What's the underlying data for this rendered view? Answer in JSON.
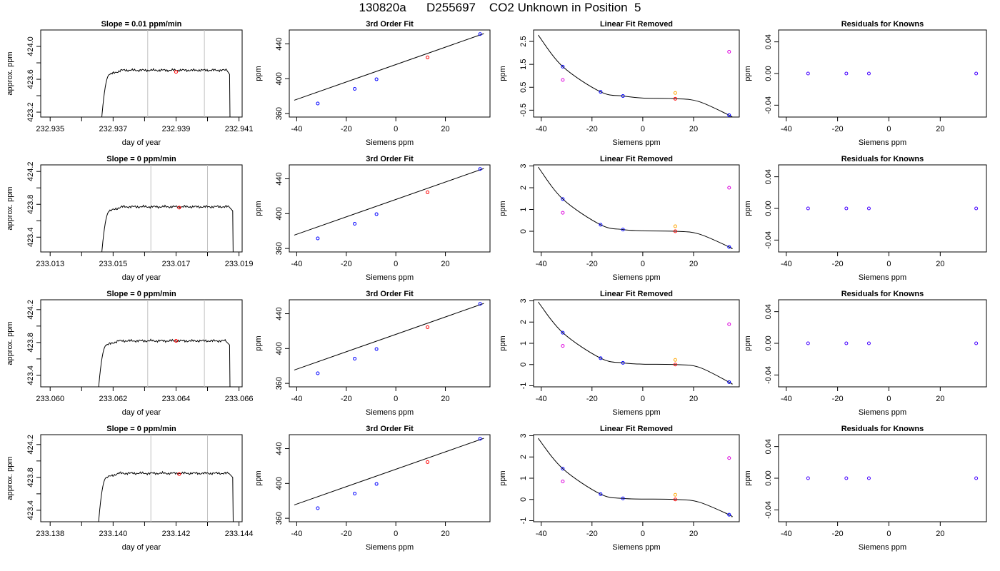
{
  "page": {
    "title": "130820a      D255697    CO2 Unknown in Position  5"
  },
  "chart_data": [
    {
      "type": "line",
      "title": "Slope =  0.01  ppm/min",
      "xlabel": "day of year",
      "ylabel": "approx. ppm",
      "xlim": [
        232.9347,
        232.9411
      ],
      "ylim": [
        423.14,
        424.2
      ],
      "xticks": [
        "232.935",
        "232.937",
        "232.939",
        "232.941"
      ],
      "xtick_values": [
        232.935,
        232.937,
        232.939,
        232.941
      ],
      "yticks": [
        "423.2",
        "423.6",
        "424.0"
      ],
      "ytick_values": [
        423.2,
        423.6,
        424.0
      ],
      "vlines": [
        232.9381,
        232.9399
      ],
      "trace": {
        "start": 232.9366,
        "end": 232.9407,
        "plateau": 423.71,
        "rise_end": 232.9369
      },
      "marker": {
        "x": 232.939,
        "y": 423.69
      }
    },
    {
      "type": "line",
      "title": "Slope =  0  ppm/min",
      "xlabel": "day of year",
      "ylabel": "approx. ppm",
      "xlim": [
        233.0127,
        233.0191
      ],
      "ylim": [
        423.22,
        424.28
      ],
      "xticks": [
        "233.013",
        "233.015",
        "233.017",
        "233.019"
      ],
      "xtick_values": [
        233.013,
        233.015,
        233.017,
        233.019
      ],
      "yticks": [
        "423.4",
        "423.8",
        "424.2"
      ],
      "ytick_values": [
        423.4,
        423.8,
        424.2
      ],
      "vlines": [
        233.0162,
        233.018
      ],
      "trace": {
        "start": 233.0146,
        "end": 233.0188,
        "plateau": 423.77,
        "rise_end": 233.0149
      },
      "marker": {
        "x": 233.0171,
        "y": 423.76
      }
    },
    {
      "type": "line",
      "title": "Slope =  0  ppm/min",
      "xlabel": "day of year",
      "ylabel": "approx. ppm",
      "xlim": [
        233.0597,
        233.0661
      ],
      "ylim": [
        423.26,
        424.32
      ],
      "xticks": [
        "233.060",
        "233.062",
        "233.064",
        "233.066"
      ],
      "xtick_values": [
        233.06,
        233.062,
        233.064,
        233.066
      ],
      "yticks": [
        "423.4",
        "423.8",
        "424.2"
      ],
      "ytick_values": [
        423.4,
        423.8,
        424.2
      ],
      "vlines": [
        233.0631,
        233.0649
      ],
      "trace": {
        "start": 233.0615,
        "end": 233.0657,
        "plateau": 423.82,
        "rise_end": 233.0618
      },
      "marker": {
        "x": 233.064,
        "y": 423.82
      }
    },
    {
      "type": "line",
      "title": "Slope =  0  ppm/min",
      "xlabel": "day of year",
      "ylabel": "approx. ppm",
      "xlim": [
        233.1377,
        233.1441
      ],
      "ylim": [
        423.26,
        424.32
      ],
      "xticks": [
        "233.138",
        "233.140",
        "233.142",
        "233.144"
      ],
      "xtick_values": [
        233.138,
        233.14,
        233.142,
        233.144
      ],
      "yticks": [
        "423.4",
        "423.8",
        "424.2"
      ],
      "ytick_values": [
        423.4,
        423.8,
        424.2
      ],
      "vlines": [
        233.1412,
        233.143
      ],
      "trace": {
        "start": 233.1395,
        "end": 233.1438,
        "plateau": 423.85,
        "rise_end": 233.1398
      },
      "marker": {
        "x": 233.1421,
        "y": 423.84
      }
    },
    {
      "type": "scatter",
      "title": "3rd Order Fit",
      "xlabel": "Siemens ppm",
      "ylabel": "ppm",
      "xlim": [
        -43,
        38
      ],
      "ylim": [
        356,
        456
      ],
      "xticks": [
        "-40",
        "-20",
        "0",
        "20"
      ],
      "xtick_values": [
        -40,
        -20,
        0,
        20
      ],
      "yticks": [
        "360",
        "400",
        "440"
      ],
      "ytick_values": [
        360,
        400,
        440
      ],
      "line": {
        "slope": 1,
        "intercept": 416.3
      },
      "points": [
        {
          "x": -31.5,
          "y": 371.6,
          "color": "#0000ff"
        },
        {
          "x": -16.6,
          "y": 388.4,
          "color": "#0000ff"
        },
        {
          "x": -7.8,
          "y": 399.4,
          "color": "#0000ff"
        },
        {
          "x": 34.0,
          "y": 451.3,
          "color": "#0000ff"
        },
        {
          "x": 12.8,
          "y": 424.5,
          "color": "#ff0000"
        }
      ]
    },
    {
      "type": "scatter",
      "title": "3rd Order Fit",
      "xlabel": "Siemens ppm",
      "ylabel": "ppm",
      "xlim": [
        -43,
        38
      ],
      "ylim": [
        356,
        456
      ],
      "xticks": [
        "-40",
        "-20",
        "0",
        "20"
      ],
      "xtick_values": [
        -40,
        -20,
        0,
        20
      ],
      "yticks": [
        "360",
        "400",
        "440"
      ],
      "ytick_values": [
        360,
        400,
        440
      ],
      "line": {
        "slope": 1,
        "intercept": 416.3
      },
      "points": [
        {
          "x": -31.5,
          "y": 371.6,
          "color": "#0000ff"
        },
        {
          "x": -16.6,
          "y": 388.4,
          "color": "#0000ff"
        },
        {
          "x": -7.8,
          "y": 399.4,
          "color": "#0000ff"
        },
        {
          "x": 34.0,
          "y": 451.3,
          "color": "#0000ff"
        },
        {
          "x": 12.8,
          "y": 424.5,
          "color": "#ff0000"
        }
      ]
    },
    {
      "type": "scatter",
      "title": "3rd Order Fit",
      "xlabel": "Siemens ppm",
      "ylabel": "ppm",
      "xlim": [
        -43,
        38
      ],
      "ylim": [
        356,
        456
      ],
      "xticks": [
        "-40",
        "-20",
        "0",
        "20"
      ],
      "xtick_values": [
        -40,
        -20,
        0,
        20
      ],
      "yticks": [
        "360",
        "400",
        "440"
      ],
      "ytick_values": [
        360,
        400,
        440
      ],
      "line": {
        "slope": 1,
        "intercept": 416.3
      },
      "points": [
        {
          "x": -31.5,
          "y": 371.6,
          "color": "#0000ff"
        },
        {
          "x": -16.6,
          "y": 388.4,
          "color": "#0000ff"
        },
        {
          "x": -7.8,
          "y": 399.4,
          "color": "#0000ff"
        },
        {
          "x": 34.0,
          "y": 451.3,
          "color": "#0000ff"
        },
        {
          "x": 12.8,
          "y": 424.5,
          "color": "#ff0000"
        }
      ]
    },
    {
      "type": "scatter",
      "title": "3rd Order Fit",
      "xlabel": "Siemens ppm",
      "ylabel": "ppm",
      "xlim": [
        -43,
        38
      ],
      "ylim": [
        356,
        456
      ],
      "xticks": [
        "-40",
        "-20",
        "0",
        "20"
      ],
      "xtick_values": [
        -40,
        -20,
        0,
        20
      ],
      "yticks": [
        "360",
        "400",
        "440"
      ],
      "ytick_values": [
        360,
        400,
        440
      ],
      "line": {
        "slope": 1,
        "intercept": 416.3
      },
      "points": [
        {
          "x": -31.5,
          "y": 371.6,
          "color": "#0000ff"
        },
        {
          "x": -16.6,
          "y": 388.4,
          "color": "#0000ff"
        },
        {
          "x": -7.8,
          "y": 399.4,
          "color": "#0000ff"
        },
        {
          "x": 34.0,
          "y": 451.3,
          "color": "#0000ff"
        },
        {
          "x": 12.8,
          "y": 424.5,
          "color": "#ff0000"
        }
      ]
    },
    {
      "type": "scatter",
      "title": "Linear Fit Removed",
      "xlabel": "Siemens ppm",
      "ylabel": "ppm",
      "xlim": [
        -43,
        38
      ],
      "ylim": [
        -0.8,
        3.0
      ],
      "xticks": [
        "-40",
        "-20",
        "0",
        "20"
      ],
      "xtick_values": [
        -40,
        -20,
        0,
        20
      ],
      "yticks": [
        "-0.5",
        "0.5",
        "1.5",
        "2.5"
      ],
      "ytick_values": [
        -0.5,
        0.5,
        1.5,
        2.5
      ],
      "curve": {
        "points": [
          [
            -41.2,
            2.78
          ],
          [
            -31.5,
            1.4
          ],
          [
            -16.6,
            0.3
          ],
          [
            -7.8,
            0.12
          ],
          [
            0,
            0.03
          ],
          [
            12.8,
            0.0
          ],
          [
            22,
            -0.12
          ],
          [
            34.0,
            -0.72
          ],
          [
            35.0,
            -0.8
          ]
        ]
      },
      "points": [
        {
          "x": -31.5,
          "y": 1.4,
          "color": "#0000ff"
        },
        {
          "x": -16.6,
          "y": 0.3,
          "color": "#0000ff"
        },
        {
          "x": -7.8,
          "y": 0.12,
          "color": "#0000ff"
        },
        {
          "x": 34.0,
          "y": -0.72,
          "color": "#0000ff"
        },
        {
          "x": -31.5,
          "y": 0.82,
          "color": "#dd00dd"
        },
        {
          "x": 34.0,
          "y": 2.05,
          "color": "#dd00dd"
        },
        {
          "x": 12.8,
          "y": 0.25,
          "color": "#ffa500"
        },
        {
          "x": 12.8,
          "y": 0.0,
          "color": "#ff0000"
        }
      ]
    },
    {
      "type": "scatter",
      "title": "Linear Fit Removed",
      "xlabel": "Siemens ppm",
      "ylabel": "ppm",
      "xlim": [
        -43,
        38
      ],
      "ylim": [
        -0.95,
        3.05
      ],
      "xticks": [
        "-40",
        "-20",
        "0",
        "20"
      ],
      "xtick_values": [
        -40,
        -20,
        0,
        20
      ],
      "yticks": [
        "0",
        "1",
        "2",
        "3"
      ],
      "ytick_values": [
        0,
        1,
        2,
        3
      ],
      "curve": {
        "points": [
          [
            -41.2,
            2.95
          ],
          [
            -31.5,
            1.48
          ],
          [
            -16.6,
            0.3
          ],
          [
            -7.8,
            0.08
          ],
          [
            0,
            0.02
          ],
          [
            12.8,
            0.0
          ],
          [
            22,
            -0.12
          ],
          [
            34.0,
            -0.72
          ],
          [
            35.0,
            -0.8
          ]
        ]
      },
      "points": [
        {
          "x": -31.5,
          "y": 1.48,
          "color": "#0000ff"
        },
        {
          "x": -16.6,
          "y": 0.3,
          "color": "#0000ff"
        },
        {
          "x": -7.8,
          "y": 0.08,
          "color": "#0000ff"
        },
        {
          "x": 34.0,
          "y": -0.72,
          "color": "#0000ff"
        },
        {
          "x": -31.5,
          "y": 0.85,
          "color": "#dd00dd"
        },
        {
          "x": 34.0,
          "y": 2.0,
          "color": "#dd00dd"
        },
        {
          "x": 12.8,
          "y": 0.23,
          "color": "#ffa500"
        },
        {
          "x": 12.8,
          "y": 0.0,
          "color": "#ff0000"
        }
      ]
    },
    {
      "type": "scatter",
      "title": "Linear Fit Removed",
      "xlabel": "Siemens ppm",
      "ylabel": "ppm",
      "xlim": [
        -43,
        38
      ],
      "ylim": [
        -1.05,
        3.05
      ],
      "xticks": [
        "-40",
        "-20",
        "0",
        "20"
      ],
      "xtick_values": [
        -40,
        -20,
        0,
        20
      ],
      "yticks": [
        "-1",
        "0",
        "1",
        "2",
        "3"
      ],
      "ytick_values": [
        -1,
        0,
        1,
        2,
        3
      ],
      "curve": {
        "points": [
          [
            -41.2,
            2.95
          ],
          [
            -31.5,
            1.5
          ],
          [
            -16.6,
            0.3
          ],
          [
            -7.8,
            0.08
          ],
          [
            0,
            0.02
          ],
          [
            12.8,
            0.0
          ],
          [
            22,
            -0.12
          ],
          [
            34.0,
            -0.83
          ],
          [
            35.0,
            -0.92
          ]
        ]
      },
      "points": [
        {
          "x": -31.5,
          "y": 1.5,
          "color": "#0000ff"
        },
        {
          "x": -16.6,
          "y": 0.3,
          "color": "#0000ff"
        },
        {
          "x": -7.8,
          "y": 0.08,
          "color": "#0000ff"
        },
        {
          "x": 34.0,
          "y": -0.83,
          "color": "#0000ff"
        },
        {
          "x": -31.5,
          "y": 0.88,
          "color": "#dd00dd"
        },
        {
          "x": 34.0,
          "y": 1.9,
          "color": "#dd00dd"
        },
        {
          "x": 12.8,
          "y": 0.22,
          "color": "#ffa500"
        },
        {
          "x": 12.8,
          "y": 0.0,
          "color": "#ff0000"
        }
      ]
    },
    {
      "type": "scatter",
      "title": "Linear Fit Removed",
      "xlabel": "Siemens ppm",
      "ylabel": "ppm",
      "xlim": [
        -43,
        38
      ],
      "ylim": [
        -1.05,
        3.05
      ],
      "xticks": [
        "-40",
        "-20",
        "0",
        "20"
      ],
      "xtick_values": [
        -40,
        -20,
        0,
        20
      ],
      "yticks": [
        "-1",
        "0",
        "1",
        "2",
        "3"
      ],
      "ytick_values": [
        -1,
        0,
        1,
        2,
        3
      ],
      "curve": {
        "points": [
          [
            -41.2,
            2.88
          ],
          [
            -31.5,
            1.45
          ],
          [
            -16.6,
            0.25
          ],
          [
            -7.8,
            0.05
          ],
          [
            0,
            0.02
          ],
          [
            12.8,
            0.0
          ],
          [
            22,
            -0.12
          ],
          [
            34.0,
            -0.72
          ],
          [
            35.0,
            -0.82
          ]
        ]
      },
      "points": [
        {
          "x": -31.5,
          "y": 1.45,
          "color": "#0000ff"
        },
        {
          "x": -16.6,
          "y": 0.25,
          "color": "#0000ff"
        },
        {
          "x": -7.8,
          "y": 0.05,
          "color": "#0000ff"
        },
        {
          "x": 34.0,
          "y": -0.72,
          "color": "#0000ff"
        },
        {
          "x": -31.5,
          "y": 0.85,
          "color": "#dd00dd"
        },
        {
          "x": 34.0,
          "y": 1.95,
          "color": "#dd00dd"
        },
        {
          "x": 12.8,
          "y": 0.22,
          "color": "#ffa500"
        },
        {
          "x": 12.8,
          "y": 0.0,
          "color": "#ff0000"
        }
      ]
    },
    {
      "type": "scatter",
      "title": "Residuals for Knowns",
      "xlabel": "Siemens ppm",
      "ylabel": "ppm",
      "xlim": [
        -43,
        38
      ],
      "ylim": [
        -0.055,
        0.055
      ],
      "xticks": [
        "-40",
        "-20",
        "0",
        "20"
      ],
      "xtick_values": [
        -40,
        -20,
        0,
        20
      ],
      "yticks": [
        "-0.04",
        "0.00",
        "0.04"
      ],
      "ytick_values": [
        -0.04,
        0.0,
        0.04
      ],
      "points": [
        {
          "x": -31.5,
          "y": 0.0,
          "color": "#4400ff"
        },
        {
          "x": -16.6,
          "y": 0.0,
          "color": "#4400ff"
        },
        {
          "x": -7.8,
          "y": 0.0,
          "color": "#4400ff"
        },
        {
          "x": 34.0,
          "y": 0.0,
          "color": "#4400ff"
        }
      ]
    },
    {
      "type": "scatter",
      "title": "Residuals for Knowns",
      "xlabel": "Siemens ppm",
      "ylabel": "ppm",
      "xlim": [
        -43,
        38
      ],
      "ylim": [
        -0.055,
        0.055
      ],
      "xticks": [
        "-40",
        "-20",
        "0",
        "20"
      ],
      "xtick_values": [
        -40,
        -20,
        0,
        20
      ],
      "yticks": [
        "-0.04",
        "0.00",
        "0.04"
      ],
      "ytick_values": [
        -0.04,
        0.0,
        0.04
      ],
      "points": [
        {
          "x": -31.5,
          "y": 0.0,
          "color": "#4400ff"
        },
        {
          "x": -16.6,
          "y": 0.0,
          "color": "#4400ff"
        },
        {
          "x": -7.8,
          "y": 0.0,
          "color": "#4400ff"
        },
        {
          "x": 34.0,
          "y": 0.0,
          "color": "#4400ff"
        }
      ]
    },
    {
      "type": "scatter",
      "title": "Residuals for Knowns",
      "xlabel": "Siemens ppm",
      "ylabel": "ppm",
      "xlim": [
        -43,
        38
      ],
      "ylim": [
        -0.055,
        0.055
      ],
      "xticks": [
        "-40",
        "-20",
        "0",
        "20"
      ],
      "xtick_values": [
        -40,
        -20,
        0,
        20
      ],
      "yticks": [
        "-0.04",
        "0.00",
        "0.04"
      ],
      "ytick_values": [
        -0.04,
        0.0,
        0.04
      ],
      "points": [
        {
          "x": -31.5,
          "y": 0.0,
          "color": "#4400ff"
        },
        {
          "x": -16.6,
          "y": 0.0,
          "color": "#4400ff"
        },
        {
          "x": -7.8,
          "y": 0.0,
          "color": "#4400ff"
        },
        {
          "x": 34.0,
          "y": 0.0,
          "color": "#4400ff"
        }
      ]
    },
    {
      "type": "scatter",
      "title": "Residuals for Knowns",
      "xlabel": "Siemens ppm",
      "ylabel": "ppm",
      "xlim": [
        -43,
        38
      ],
      "ylim": [
        -0.055,
        0.055
      ],
      "xticks": [
        "-40",
        "-20",
        "0",
        "20"
      ],
      "xtick_values": [
        -40,
        -20,
        0,
        20
      ],
      "yticks": [
        "-0.04",
        "0.00",
        "0.04"
      ],
      "ytick_values": [
        -0.04,
        0.0,
        0.04
      ],
      "points": [
        {
          "x": -31.5,
          "y": 0.0,
          "color": "#4400ff"
        },
        {
          "x": -16.6,
          "y": 0.0,
          "color": "#4400ff"
        },
        {
          "x": -7.8,
          "y": 0.0,
          "color": "#4400ff"
        },
        {
          "x": 34.0,
          "y": 0.0,
          "color": "#4400ff"
        }
      ]
    }
  ]
}
